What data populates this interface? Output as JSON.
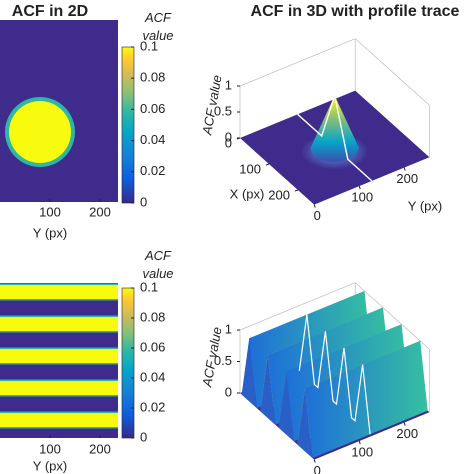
{
  "chart_data": [
    {
      "type": "heatmap",
      "title": "ACF in 2D",
      "xlabel": "Y (px)",
      "xlim": [
        0,
        236
      ],
      "xticks": [
        100,
        200
      ],
      "colorbar_label": "ACF value",
      "zlim": [
        0,
        0.1
      ],
      "zticks": [
        0,
        0.02,
        0.04,
        0.06,
        0.08,
        0.1
      ]
    },
    {
      "type": "heatmap",
      "xlabel": "Y (px)",
      "xlim": [
        0,
        236
      ],
      "xticks": [
        100,
        200
      ],
      "colorbar_label": "ACF value",
      "zlim": [
        0,
        0.1
      ],
      "zticks": [
        0,
        0.02,
        0.04,
        0.06,
        0.08,
        0.1
      ]
    },
    {
      "type": "surface3d",
      "title": "ACF in 3D with profile trace",
      "zlabel": "ACF value",
      "xlabel": "X (px)",
      "ylabel": "Y (px)",
      "xlim": [
        0,
        256
      ],
      "ylim": [
        0,
        256
      ],
      "zlim": [
        0,
        1
      ],
      "xticks": [
        0,
        100,
        200
      ],
      "yticks": [
        0,
        100,
        200
      ],
      "zticks": [
        0,
        0.5,
        1
      ]
    },
    {
      "type": "surface3d",
      "zlabel": "ACF value",
      "xlim": [
        0,
        256
      ],
      "ylim": [
        0,
        256
      ],
      "zlim": [
        0,
        1
      ],
      "yticks": [
        0,
        100,
        200
      ],
      "zticks": [
        0,
        0.5,
        1
      ]
    }
  ]
}
